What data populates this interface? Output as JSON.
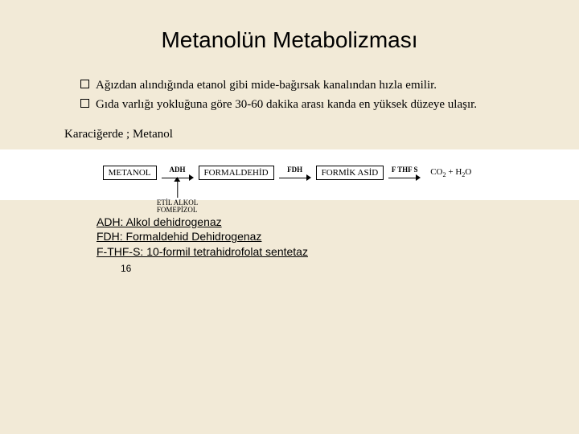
{
  "title": "Metanolün Metabolizması",
  "bullets": [
    "Ağızdan alındığında etanol gibi mide-bağırsak kanalından hızla emilir.",
    "Gıda varlığı yokluğuna göre 30-60 dakika arası kanda en yüksek düzeye ulaşır."
  ],
  "subhead": "Karaciğerde ; Metanol",
  "pathway": {
    "type": "flowchart",
    "background_color": "#ffffff",
    "border_color": "#000000",
    "font_size": 11,
    "label_font_size": 9,
    "nodes": [
      {
        "id": "n0",
        "label": "METANOL",
        "boxed": true
      },
      {
        "id": "n1",
        "label": "FORMALDEHİD",
        "boxed": true
      },
      {
        "id": "n2",
        "label": "FORMİK ASİD",
        "boxed": true
      },
      {
        "id": "n3",
        "label": "CO₂ + H₂O",
        "boxed": false
      }
    ],
    "edges": [
      {
        "from": "n0",
        "to": "n1",
        "label": "ADH",
        "inhibitors": [
          "ETİL ALKOL",
          "FOMEPİZOL"
        ]
      },
      {
        "from": "n1",
        "to": "n2",
        "label": "FDH"
      },
      {
        "from": "n2",
        "to": "n3",
        "label": "F THF S"
      }
    ]
  },
  "legend": [
    "ADH: Alkol dehidrogenaz",
    "FDH: Formaldehid Dehidrogenaz",
    "F-THF-S: 10-formil tetrahidrofolat sentetaz"
  ],
  "page_number": "16",
  "colors": {
    "slide_bg": "#f2ead7",
    "strip_bg": "#ffffff",
    "text": "#000000"
  }
}
